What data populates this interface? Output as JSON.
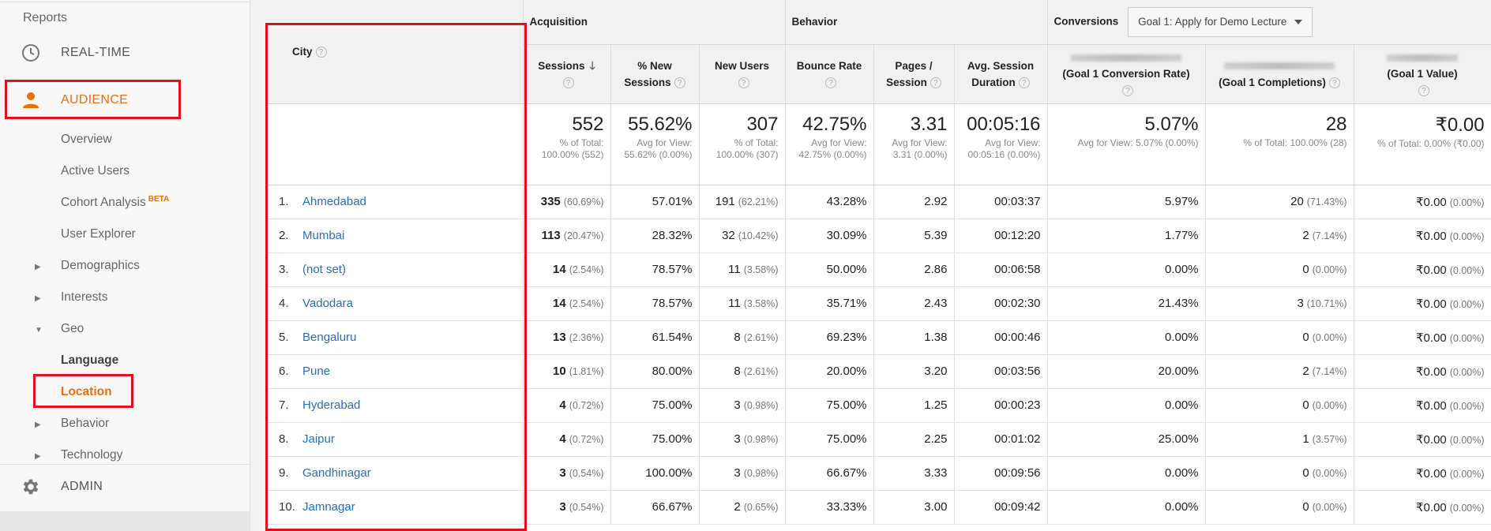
{
  "sidebar": {
    "reports_label": "Reports",
    "realtime_label": "REAL-TIME",
    "audience_label": "AUDIENCE",
    "admin_label": "ADMIN",
    "sub_items": [
      {
        "label": "Overview"
      },
      {
        "label": "Active Users"
      },
      {
        "label": "Cohort Analysis",
        "badge": "BETA"
      },
      {
        "label": "User Explorer"
      },
      {
        "label": "Demographics"
      },
      {
        "label": "Interests"
      },
      {
        "label": "Geo"
      },
      {
        "label": "Language"
      },
      {
        "label": "Location"
      },
      {
        "label": "Behavior"
      },
      {
        "label": "Technology"
      }
    ]
  },
  "table": {
    "city_header": "City",
    "groups": {
      "acquisition": "Acquisition",
      "behavior": "Behavior",
      "conversions": "Conversions",
      "goal_select": "Goal 1: Apply for Demo Lecture"
    },
    "columns": {
      "sessions": "Sessions",
      "new_sessions": "% New Sessions",
      "new_users": "New Users",
      "bounce_rate": "Bounce Rate",
      "pages_session": "Pages / Session",
      "avg_duration": "Avg. Session Duration",
      "goal_conv_rate": "(Goal 1 Conversion Rate)",
      "goal_completions": "(Goal 1 Completions)",
      "goal_value": "(Goal 1 Value)"
    },
    "totals": {
      "sessions": {
        "value": "552",
        "sub": "% of Total: 100.00% (552)"
      },
      "new_sessions": {
        "value": "55.62%",
        "sub": "Avg for View: 55.62% (0.00%)"
      },
      "new_users": {
        "value": "307",
        "sub": "% of Total: 100.00% (307)"
      },
      "bounce_rate": {
        "value": "42.75%",
        "sub": "Avg for View: 42.75% (0.00%)"
      },
      "pages_session": {
        "value": "3.31",
        "sub": "Avg for View: 3.31 (0.00%)"
      },
      "avg_duration": {
        "value": "00:05:16",
        "sub": "Avg for View: 00:05:16 (0.00%)"
      },
      "goal_conv_rate": {
        "value": "5.07%",
        "sub": "Avg for View: 5.07% (0.00%)"
      },
      "goal_completions": {
        "value": "28",
        "sub": "% of Total: 100.00% (28)"
      },
      "goal_value": {
        "value": "₹0.00",
        "sub": "% of Total: 0.00% (₹0.00)"
      }
    },
    "rows": [
      {
        "num": "1.",
        "city": "Ahmedabad",
        "sessions": "335",
        "sessions_pct": "(60.69%)",
        "new_sessions": "57.01%",
        "new_users": "191",
        "new_users_pct": "(62.21%)",
        "bounce_rate": "43.28%",
        "pages_session": "2.92",
        "avg_duration": "00:03:37",
        "conv_rate": "5.97%",
        "completions": "20",
        "completions_pct": "(71.43%)",
        "value": "₹0.00",
        "value_pct": "(0.00%)"
      },
      {
        "num": "2.",
        "city": "Mumbai",
        "sessions": "113",
        "sessions_pct": "(20.47%)",
        "new_sessions": "28.32%",
        "new_users": "32",
        "new_users_pct": "(10.42%)",
        "bounce_rate": "30.09%",
        "pages_session": "5.39",
        "avg_duration": "00:12:20",
        "conv_rate": "1.77%",
        "completions": "2",
        "completions_pct": "(7.14%)",
        "value": "₹0.00",
        "value_pct": "(0.00%)"
      },
      {
        "num": "3.",
        "city": "(not set)",
        "sessions": "14",
        "sessions_pct": "(2.54%)",
        "new_sessions": "78.57%",
        "new_users": "11",
        "new_users_pct": "(3.58%)",
        "bounce_rate": "50.00%",
        "pages_session": "2.86",
        "avg_duration": "00:06:58",
        "conv_rate": "0.00%",
        "completions": "0",
        "completions_pct": "(0.00%)",
        "value": "₹0.00",
        "value_pct": "(0.00%)"
      },
      {
        "num": "4.",
        "city": "Vadodara",
        "sessions": "14",
        "sessions_pct": "(2.54%)",
        "new_sessions": "78.57%",
        "new_users": "11",
        "new_users_pct": "(3.58%)",
        "bounce_rate": "35.71%",
        "pages_session": "2.43",
        "avg_duration": "00:02:30",
        "conv_rate": "21.43%",
        "completions": "3",
        "completions_pct": "(10.71%)",
        "value": "₹0.00",
        "value_pct": "(0.00%)"
      },
      {
        "num": "5.",
        "city": "Bengaluru",
        "sessions": "13",
        "sessions_pct": "(2.36%)",
        "new_sessions": "61.54%",
        "new_users": "8",
        "new_users_pct": "(2.61%)",
        "bounce_rate": "69.23%",
        "pages_session": "1.38",
        "avg_duration": "00:00:46",
        "conv_rate": "0.00%",
        "completions": "0",
        "completions_pct": "(0.00%)",
        "value": "₹0.00",
        "value_pct": "(0.00%)"
      },
      {
        "num": "6.",
        "city": "Pune",
        "sessions": "10",
        "sessions_pct": "(1.81%)",
        "new_sessions": "80.00%",
        "new_users": "8",
        "new_users_pct": "(2.61%)",
        "bounce_rate": "20.00%",
        "pages_session": "3.20",
        "avg_duration": "00:03:56",
        "conv_rate": "20.00%",
        "completions": "2",
        "completions_pct": "(7.14%)",
        "value": "₹0.00",
        "value_pct": "(0.00%)"
      },
      {
        "num": "7.",
        "city": "Hyderabad",
        "sessions": "4",
        "sessions_pct": "(0.72%)",
        "new_sessions": "75.00%",
        "new_users": "3",
        "new_users_pct": "(0.98%)",
        "bounce_rate": "75.00%",
        "pages_session": "1.25",
        "avg_duration": "00:00:23",
        "conv_rate": "0.00%",
        "completions": "0",
        "completions_pct": "(0.00%)",
        "value": "₹0.00",
        "value_pct": "(0.00%)"
      },
      {
        "num": "8.",
        "city": "Jaipur",
        "sessions": "4",
        "sessions_pct": "(0.72%)",
        "new_sessions": "75.00%",
        "new_users": "3",
        "new_users_pct": "(0.98%)",
        "bounce_rate": "75.00%",
        "pages_session": "2.25",
        "avg_duration": "00:01:02",
        "conv_rate": "25.00%",
        "completions": "1",
        "completions_pct": "(3.57%)",
        "value": "₹0.00",
        "value_pct": "(0.00%)"
      },
      {
        "num": "9.",
        "city": "Gandhinagar",
        "sessions": "3",
        "sessions_pct": "(0.54%)",
        "new_sessions": "100.00%",
        "new_users": "3",
        "new_users_pct": "(0.98%)",
        "bounce_rate": "66.67%",
        "pages_session": "3.33",
        "avg_duration": "00:09:56",
        "conv_rate": "0.00%",
        "completions": "0",
        "completions_pct": "(0.00%)",
        "value": "₹0.00",
        "value_pct": "(0.00%)"
      },
      {
        "num": "10.",
        "city": "Jamnagar",
        "sessions": "3",
        "sessions_pct": "(0.54%)",
        "new_sessions": "66.67%",
        "new_users": "2",
        "new_users_pct": "(0.65%)",
        "bounce_rate": "33.33%",
        "pages_session": "3.00",
        "avg_duration": "00:09:42",
        "conv_rate": "0.00%",
        "completions": "0",
        "completions_pct": "(0.00%)",
        "value": "₹0.00",
        "value_pct": "(0.00%)"
      }
    ]
  },
  "colors": {
    "accent": "#e8710a",
    "highlight": "#e0101c",
    "link": "#2a6ebb"
  },
  "icons": [
    "clock-icon",
    "person-icon",
    "gear-icon",
    "help-icon",
    "sort-arrow-icon",
    "triangle-right-icon",
    "triangle-down-icon",
    "caret-down-icon"
  ]
}
